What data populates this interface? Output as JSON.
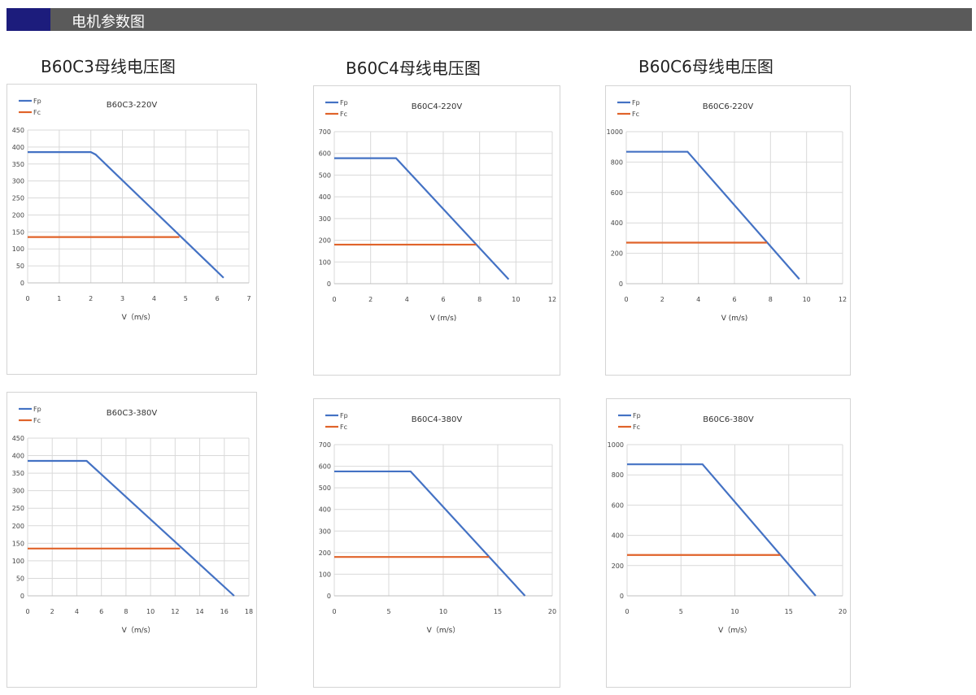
{
  "header": {
    "title": "电机参数图",
    "accent": "#1c1c7c",
    "bar": "#5a5a5a"
  },
  "sections": [
    "B60C3母线电压图",
    "B60C4母线电压图",
    "B60C6母线电压图"
  ],
  "colors": {
    "Fp": "#4472c4",
    "Fc": "#e0632a"
  },
  "chart_data": [
    {
      "type": "line",
      "title": "B60C3-220V",
      "xlabel": "V（m/s）",
      "xlim": [
        0,
        7
      ],
      "xticks": [
        0,
        1,
        2,
        3,
        4,
        5,
        6,
        7
      ],
      "ylim": [
        0,
        450
      ],
      "yticks": [
        0,
        50,
        100,
        150,
        200,
        250,
        300,
        350,
        400,
        450
      ],
      "grid": true,
      "legend": "top-left",
      "series": [
        {
          "name": "Fp",
          "x": [
            0,
            2.0,
            2.15,
            6.2
          ],
          "y": [
            385,
            385,
            378,
            15
          ]
        },
        {
          "name": "Fc",
          "x": [
            0,
            4.8
          ],
          "y": [
            135,
            135
          ]
        }
      ]
    },
    {
      "type": "line",
      "title": "B60C4-220V",
      "xlabel": "V (m/s)",
      "xlim": [
        0,
        12
      ],
      "xticks": [
        0,
        2,
        4,
        6,
        8,
        10,
        12
      ],
      "ylim": [
        0,
        700
      ],
      "yticks": [
        0,
        100,
        200,
        300,
        400,
        500,
        600,
        700
      ],
      "grid": true,
      "legend": "top-left",
      "series": [
        {
          "name": "Fp",
          "x": [
            0,
            3.4,
            9.6
          ],
          "y": [
            578,
            578,
            20
          ]
        },
        {
          "name": "Fc",
          "x": [
            0,
            7.8
          ],
          "y": [
            180,
            180
          ]
        }
      ]
    },
    {
      "type": "line",
      "title": "B60C6-220V",
      "xlabel": "V (m/s)",
      "xlim": [
        0,
        12
      ],
      "xticks": [
        0,
        2,
        4,
        6,
        8,
        10,
        12
      ],
      "ylim": [
        0,
        1000
      ],
      "yticks": [
        0,
        200,
        400,
        600,
        800,
        1000
      ],
      "grid": true,
      "legend": "top-left",
      "series": [
        {
          "name": "Fp",
          "x": [
            0,
            3.4,
            9.6
          ],
          "y": [
            868,
            868,
            30
          ]
        },
        {
          "name": "Fc",
          "x": [
            0,
            7.8
          ],
          "y": [
            270,
            270
          ]
        }
      ]
    },
    {
      "type": "line",
      "title": "B60C3-380V",
      "xlabel": "V（m/s）",
      "xlim": [
        0,
        18
      ],
      "xticks": [
        0,
        2,
        4,
        6,
        8,
        10,
        12,
        14,
        16,
        18
      ],
      "ylim": [
        0,
        450
      ],
      "yticks": [
        0,
        50,
        100,
        150,
        200,
        250,
        300,
        350,
        400,
        450
      ],
      "grid": true,
      "legend": "top-left",
      "series": [
        {
          "name": "Fp",
          "x": [
            0,
            4.8,
            16.8
          ],
          "y": [
            385,
            385,
            0
          ]
        },
        {
          "name": "Fc",
          "x": [
            0,
            12.4
          ],
          "y": [
            135,
            135
          ]
        }
      ]
    },
    {
      "type": "line",
      "title": "B60C4-380V",
      "xlabel": "V（m/s）",
      "xlim": [
        0,
        20
      ],
      "xticks": [
        0,
        5,
        10,
        15,
        20
      ],
      "ylim": [
        0,
        700
      ],
      "yticks": [
        0,
        100,
        200,
        300,
        400,
        500,
        600,
        700
      ],
      "grid": true,
      "legend": "top-left",
      "series": [
        {
          "name": "Fp",
          "x": [
            0,
            7,
            17.5
          ],
          "y": [
            576,
            576,
            0
          ]
        },
        {
          "name": "Fc",
          "x": [
            0,
            14.2
          ],
          "y": [
            180,
            180
          ]
        }
      ]
    },
    {
      "type": "line",
      "title": "B60C6-380V",
      "xlabel": "V（m/s）",
      "xlim": [
        0,
        20
      ],
      "xticks": [
        0,
        5,
        10,
        15,
        20
      ],
      "ylim": [
        0,
        1000
      ],
      "yticks": [
        0,
        200,
        400,
        600,
        800,
        1000
      ],
      "grid": true,
      "legend": "top-left",
      "series": [
        {
          "name": "Fp",
          "x": [
            0,
            7,
            17.5
          ],
          "y": [
            870,
            870,
            0
          ]
        },
        {
          "name": "Fc",
          "x": [
            0,
            14.2
          ],
          "y": [
            270,
            270
          ]
        }
      ]
    }
  ]
}
